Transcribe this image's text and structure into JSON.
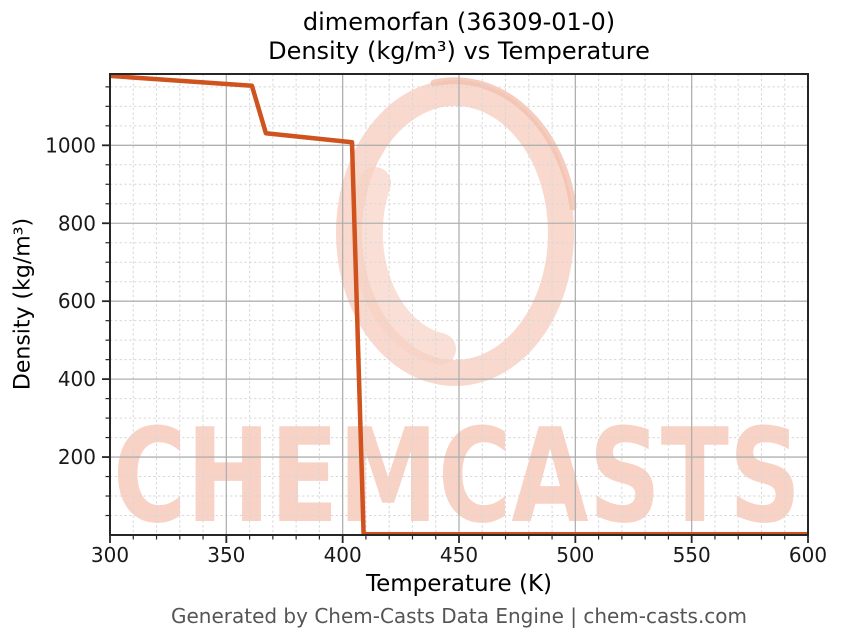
{
  "header": {
    "title_line1": "dimemorfan (36309-01-0)",
    "title_line2": "Density (kg/m³) vs Temperature"
  },
  "chart_data": {
    "type": "line",
    "title": "dimemorfan (36309-01-0) Density (kg/m³) vs Temperature",
    "xlabel": "Temperature (K)",
    "ylabel": "Density (kg/m³)",
    "xlim": [
      300,
      600
    ],
    "ylim": [
      0,
      1183
    ],
    "x_ticks": [
      300,
      350,
      400,
      450,
      500,
      550,
      600
    ],
    "y_ticks": [
      200,
      400,
      600,
      800,
      1000
    ],
    "x_minor_step": 10,
    "y_minor_step": 50,
    "grid": "major solid + minor dashed",
    "legend": "none",
    "series": [
      {
        "name": "density",
        "color": "#d0521e",
        "points_x": [
          300,
          361,
          367,
          404,
          409,
          600
        ],
        "points_y": [
          1178,
          1153,
          1031,
          1008,
          2,
          2
        ]
      }
    ]
  },
  "watermark": {
    "text": "CHEMCASTS",
    "color": "#f8d2c5",
    "accent_color": "#f4bfae"
  },
  "footer": {
    "text": "Generated by Chem-Casts Data Engine | chem-casts.com"
  }
}
